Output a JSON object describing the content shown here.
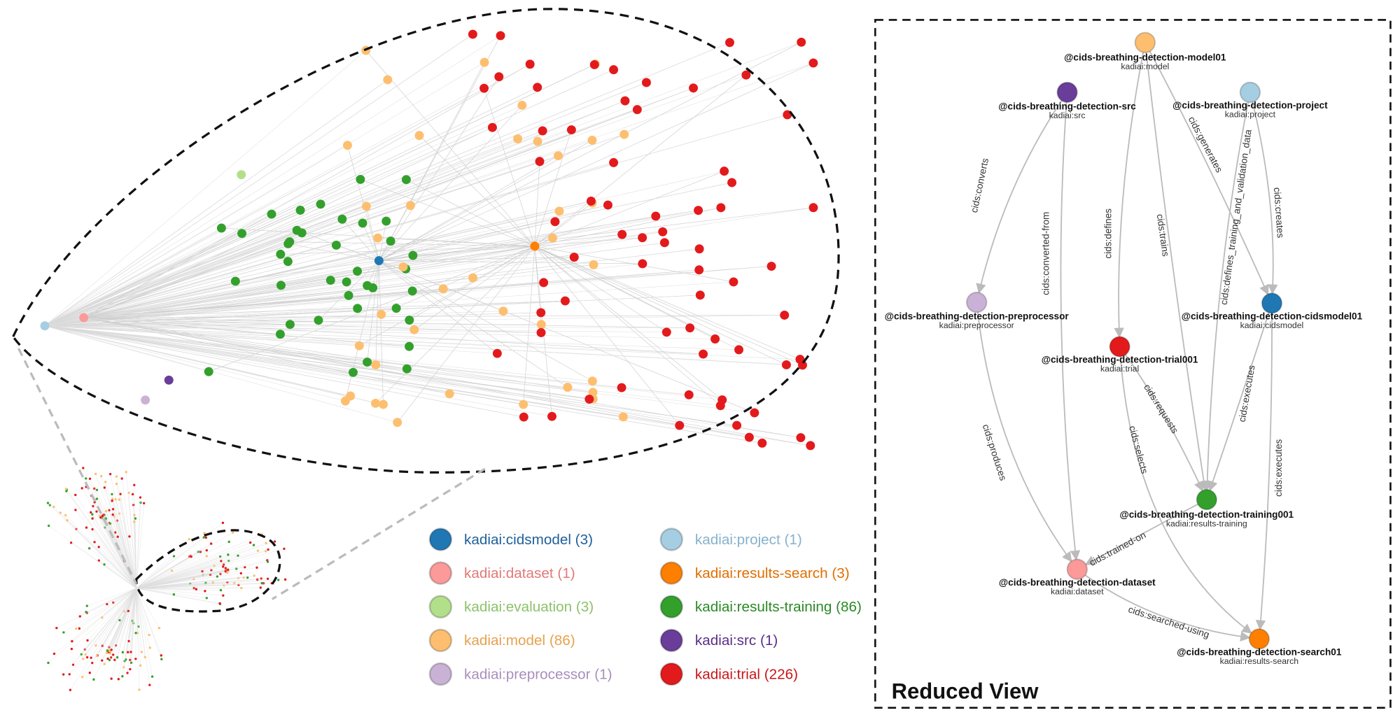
{
  "legend": [
    {
      "label": "kadiai:cidsmodel (3)",
      "color": "#1f78b4",
      "text": "#1f5f9a"
    },
    {
      "label": "kadiai:dataset (1)",
      "color": "#fb9a99",
      "text": "#e07a78"
    },
    {
      "label": "kadiai:evaluation (3)",
      "color": "#b2df8a",
      "text": "#8cc26a"
    },
    {
      "label": "kadiai:model (86)",
      "color": "#fdbf6f",
      "text": "#e6a24e"
    },
    {
      "label": "kadiai:preprocessor (1)",
      "color": "#cab2d6",
      "text": "#a98fbb"
    },
    {
      "label": "kadiai:project (1)",
      "color": "#a6cee3",
      "text": "#86b2cb"
    },
    {
      "label": "kadiai:results-search (3)",
      "color": "#ff7f00",
      "text": "#e06f00"
    },
    {
      "label": "kadiai:results-training (86)",
      "color": "#33a02c",
      "text": "#2a8a25"
    },
    {
      "label": "kadiai:src (1)",
      "color": "#6a3d9a",
      "text": "#5a2f88"
    },
    {
      "label": "kadiai:trial (226)",
      "color": "#e31a1c",
      "text": "#c81518"
    }
  ],
  "reduced_view": {
    "title": "Reduced View",
    "nodes": [
      {
        "name": "@cids-breathing-detection-model01",
        "type": "kadiai:model",
        "color": "#fdbf6f"
      },
      {
        "name": "@cids-breathing-detection-src",
        "type": "kadiai:src",
        "color": "#6a3d9a"
      },
      {
        "name": "@cids-breathing-detection-project",
        "type": "kadiai:project",
        "color": "#a6cee3"
      },
      {
        "name": "@cids-breathing-detection-preprocessor",
        "type": "kadiai:preprocessor",
        "color": "#cab2d6"
      },
      {
        "name": "@cids-breathing-detection-cidsmodel01",
        "type": "kadiai:cidsmodel",
        "color": "#1f78b4"
      },
      {
        "name": "@cids-breathing-detection-trial001",
        "type": "kadiai:trial",
        "color": "#e31a1c"
      },
      {
        "name": "@cids-breathing-detection-training001",
        "type": "kadiai:results-training",
        "color": "#33a02c"
      },
      {
        "name": "@cids-breathing-detection-dataset",
        "type": "kadiai:dataset",
        "color": "#fb9a99"
      },
      {
        "name": "@cids-breathing-detection-search01",
        "type": "kadiai:results-search",
        "color": "#ff7f00"
      }
    ],
    "edges": [
      {
        "label": "cids:converts"
      },
      {
        "label": "cids:converted-from"
      },
      {
        "label": "cids:defines"
      },
      {
        "label": "cids:trains"
      },
      {
        "label": "cids:generates"
      },
      {
        "label": "cids:defines_training_and_validation_data"
      },
      {
        "label": "cids:creates"
      },
      {
        "label": "cids:requests"
      },
      {
        "label": "cids:executes"
      },
      {
        "label": "cids:selects"
      },
      {
        "label": "cids:executes"
      },
      {
        "label": "cids:produces"
      },
      {
        "label": "cids:trained-on"
      },
      {
        "label": "cids:searched-using"
      }
    ]
  }
}
